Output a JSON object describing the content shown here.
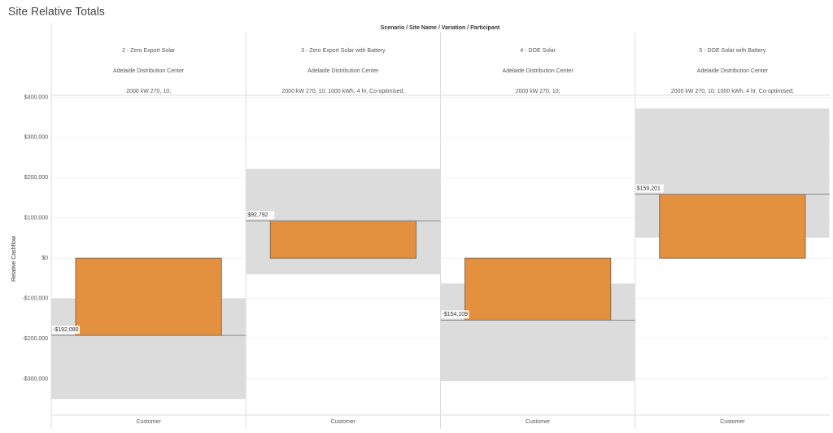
{
  "chart_data": {
    "type": "bar",
    "title": "Site Relative Totals",
    "header": "Scenario / Site Name / Variation / Participant",
    "y_label": "Relative Cashflow",
    "categories": [
      "2 - Zero Export Solar",
      "3 - Zero Export Solar with Battery",
      "4 - DOE Solar",
      "5 - DOE Solar with Battery"
    ],
    "sites": [
      "Adelaide Distribution Center",
      "Adelaide Distribution Center",
      "Adelaide Distribution Center",
      "Adelaide Distribution Center"
    ],
    "variations": [
      "2000 kW 270, 10;",
      "2000 kW 270, 10; 1000 kWh, 4 hr, Co-optimised;",
      "2000 kW 270, 10;",
      "2000 kW 270, 10; 1000 kWh, 4 hr, Co-optimised;"
    ],
    "x_labels": [
      "Customer",
      "Customer",
      "Customer",
      "Customer"
    ],
    "values": [
      -192080,
      92792,
      -154109,
      159201
    ],
    "value_labels": [
      "-$192,080",
      "$92,792",
      "-$154,109",
      "$159,201"
    ],
    "bands": [
      [
        -350000,
        -100000
      ],
      [
        -40000,
        222000
      ],
      [
        -305000,
        -63000
      ],
      [
        51000,
        372000
      ]
    ],
    "color": "#e3913f",
    "band_color": "#dcdcdc",
    "ylim": [
      -390000,
      405000
    ],
    "yticks": [
      {
        "value": 400000,
        "label": "$400,000"
      },
      {
        "value": 300000,
        "label": "$300,000"
      },
      {
        "value": 200000,
        "label": "$200,000"
      },
      {
        "value": 100000,
        "label": "$100,000"
      },
      {
        "value": 0,
        "label": "$0"
      },
      {
        "value": -100000,
        "label": "-$100,000"
      },
      {
        "value": -200000,
        "label": "-$200,000"
      },
      {
        "value": -300000,
        "label": "-$300,000"
      }
    ],
    "grid": true
  }
}
